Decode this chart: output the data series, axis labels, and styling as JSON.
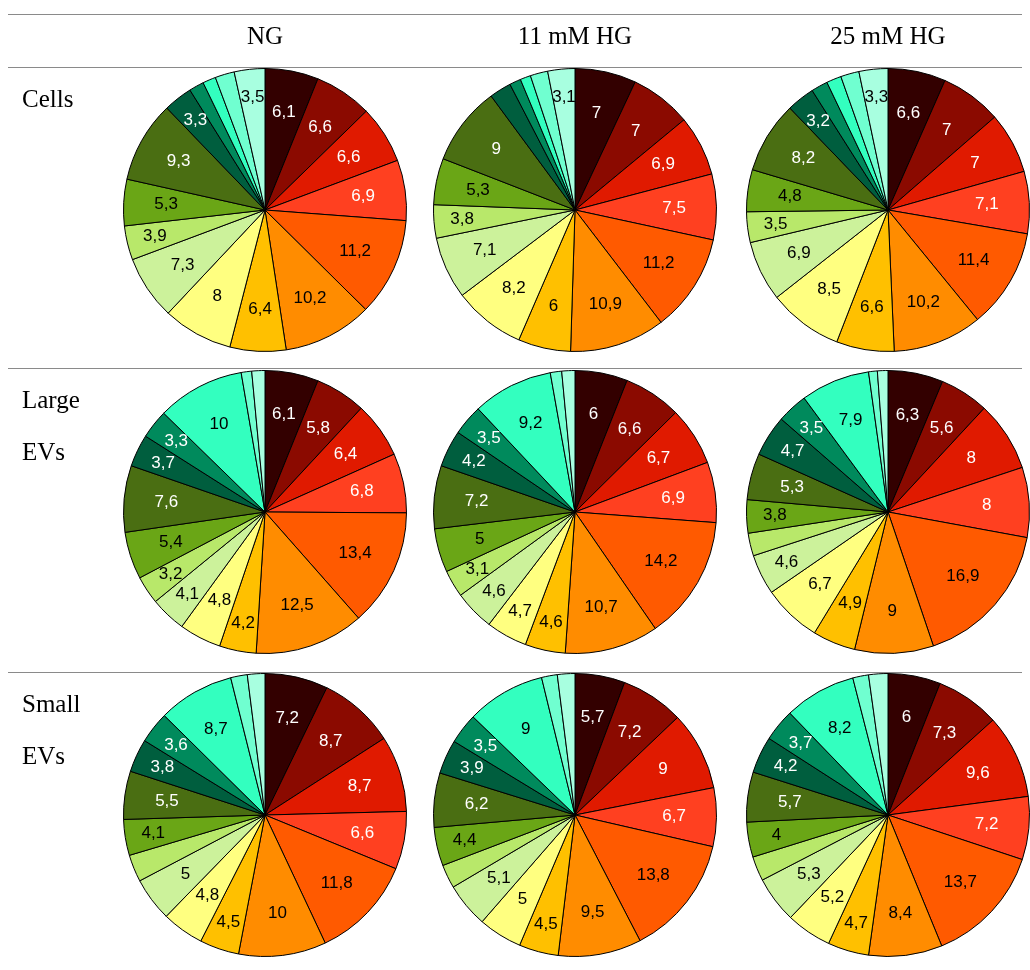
{
  "chart_data": [
    {
      "type": "pie",
      "title": "NG",
      "ylabel": "Cells",
      "categories": [
        null,
        null,
        null,
        null,
        null,
        null,
        null,
        null,
        null,
        null,
        null,
        null,
        null,
        null,
        null,
        null,
        null
      ],
      "values": [
        6.1,
        6.6,
        6.6,
        6.9,
        11.2,
        10.2,
        6.4,
        8,
        7.3,
        3.9,
        5.3,
        9.3,
        3.3,
        1.7,
        1.5,
        2.2,
        3.5
      ],
      "value_labels": [
        "6,1",
        "6,6",
        "6,6",
        "6,9",
        "11,2",
        "10,2",
        "6,4",
        "8",
        "7,3",
        "3,9",
        "5,3",
        "9,3",
        "3,3",
        null,
        null,
        null,
        "3,5"
      ],
      "colors": [
        "#330000",
        "#8b0a00",
        "#e01a00",
        "#ff4020",
        "#ff5a00",
        "#ff8c00",
        "#ffc000",
        "#ffff80",
        "#ccf29b",
        "#b8e86a",
        "#6aa616",
        "#4a6e12",
        "#005e3e",
        "#008a5c",
        "#33ffbf",
        "#70ffd0",
        "#a8ffe0"
      ]
    },
    {
      "type": "pie",
      "title": "11 mM HG",
      "categories": [
        null,
        null,
        null,
        null,
        null,
        null,
        null,
        null,
        null,
        null,
        null,
        null,
        null,
        null,
        null,
        null,
        null
      ],
      "values": [
        7,
        7,
        6.9,
        7.5,
        11.2,
        10.9,
        6,
        8.2,
        7.1,
        3.8,
        5.3,
        9,
        2.5,
        1.3,
        1.2,
        2,
        3.1
      ],
      "value_labels": [
        "7",
        "7",
        "6,9",
        "7,5",
        "11,2",
        "10,9",
        "6",
        "8,2",
        "7,1",
        "3,8",
        "5,3",
        "9",
        null,
        null,
        null,
        null,
        "3,1"
      ],
      "colors": [
        "#330000",
        "#8b0a00",
        "#e01a00",
        "#ff4020",
        "#ff5a00",
        "#ff8c00",
        "#ffc000",
        "#ffff80",
        "#ccf29b",
        "#b8e86a",
        "#6aa616",
        "#4a6e12",
        "#005e3e",
        "#008a5c",
        "#33ffbf",
        "#70ffd0",
        "#a8ffe0"
      ]
    },
    {
      "type": "pie",
      "title": "25 mM HG",
      "categories": [
        null,
        null,
        null,
        null,
        null,
        null,
        null,
        null,
        null,
        null,
        null,
        null,
        null,
        null,
        null,
        null,
        null
      ],
      "values": [
        6.6,
        7,
        7,
        7.1,
        11.4,
        10.2,
        6.6,
        8.5,
        6.9,
        3.5,
        4.8,
        8.2,
        3.2,
        1.9,
        1.7,
        2.1,
        3.3
      ],
      "value_labels": [
        "6,6",
        "7",
        "7",
        "7,1",
        "11,4",
        "10,2",
        "6,6",
        "8,5",
        "6,9",
        "3,5",
        "4,8",
        "8,2",
        "3,2",
        null,
        null,
        null,
        "3,3"
      ],
      "colors": [
        "#330000",
        "#8b0a00",
        "#e01a00",
        "#ff4020",
        "#ff5a00",
        "#ff8c00",
        "#ffc000",
        "#ffff80",
        "#ccf29b",
        "#b8e86a",
        "#6aa616",
        "#4a6e12",
        "#005e3e",
        "#008a5c",
        "#33ffbf",
        "#70ffd0",
        "#a8ffe0"
      ]
    },
    {
      "type": "pie",
      "ylabel": "Large EVs",
      "categories": [
        null,
        null,
        null,
        null,
        null,
        null,
        null,
        null,
        null,
        null,
        null,
        null,
        null,
        null,
        null,
        null,
        null
      ],
      "values": [
        6.1,
        5.8,
        6.4,
        6.8,
        13.4,
        12.5,
        4.2,
        4.8,
        4.1,
        3.2,
        5.4,
        7.6,
        3.7,
        3.3,
        10,
        1.2,
        1.5
      ],
      "value_labels": [
        "6,1",
        "5,8",
        "6,4",
        "6,8",
        "13,4",
        "12,5",
        "4,2",
        "4,8",
        "4,1",
        "3,2",
        "5,4",
        "7,6",
        "3,7",
        "3,3",
        "10",
        null,
        null
      ],
      "colors": [
        "#330000",
        "#8b0a00",
        "#e01a00",
        "#ff4020",
        "#ff5a00",
        "#ff8c00",
        "#ffc000",
        "#ffff80",
        "#ccf29b",
        "#b8e86a",
        "#6aa616",
        "#4a6e12",
        "#005e3e",
        "#008a5c",
        "#33ffbf",
        "#70ffd0",
        "#a8ffe0"
      ]
    },
    {
      "type": "pie",
      "categories": [
        null,
        null,
        null,
        null,
        null,
        null,
        null,
        null,
        null,
        null,
        null,
        null,
        null,
        null,
        null,
        null,
        null
      ],
      "values": [
        6,
        6.6,
        6.7,
        6.9,
        14.2,
        10.7,
        4.6,
        4.7,
        4.6,
        3.1,
        5,
        7.2,
        4.2,
        3.5,
        9.2,
        1.3,
        1.5
      ],
      "value_labels": [
        "6",
        "6,6",
        "6,7",
        "6,9",
        "14,2",
        "10,7",
        "4,6",
        "4,7",
        "4,6",
        "3,1",
        "5",
        "7,2",
        "4,2",
        "3,5",
        "9,2",
        null,
        null
      ],
      "colors": [
        "#330000",
        "#8b0a00",
        "#e01a00",
        "#ff4020",
        "#ff5a00",
        "#ff8c00",
        "#ffc000",
        "#ffff80",
        "#ccf29b",
        "#b8e86a",
        "#6aa616",
        "#4a6e12",
        "#005e3e",
        "#008a5c",
        "#33ffbf",
        "#70ffd0",
        "#a8ffe0"
      ]
    },
    {
      "type": "pie",
      "categories": [
        null,
        null,
        null,
        null,
        null,
        null,
        null,
        null,
        null,
        null,
        null,
        null,
        null,
        null,
        null,
        null,
        null
      ],
      "values": [
        6.3,
        5.6,
        8,
        8,
        16.9,
        9,
        4.9,
        6.7,
        4.6,
        2.6,
        3.8,
        5.3,
        4.7,
        3.5,
        7.9,
        1,
        1.2
      ],
      "value_labels": [
        "6,3",
        "5,6",
        "8",
        "8",
        "16,9",
        "9",
        "4,9",
        "6,7",
        "4,6",
        null,
        "3,8",
        "5,3",
        "4,7",
        "3,5",
        "7,9",
        null,
        null
      ],
      "colors": [
        "#330000",
        "#8b0a00",
        "#e01a00",
        "#ff4020",
        "#ff5a00",
        "#ff8c00",
        "#ffc000",
        "#ffff80",
        "#ccf29b",
        "#b8e86a",
        "#6aa616",
        "#4a6e12",
        "#005e3e",
        "#008a5c",
        "#33ffbf",
        "#70ffd0",
        "#a8ffe0"
      ]
    },
    {
      "type": "pie",
      "ylabel": "Small EVs",
      "categories": [
        null,
        null,
        null,
        null,
        null,
        null,
        null,
        null,
        null,
        null,
        null,
        null,
        null,
        null,
        null,
        null,
        null
      ],
      "values": [
        7.2,
        8.7,
        8.7,
        6.6,
        11.8,
        10,
        4.5,
        4.8,
        5,
        3.1,
        4.1,
        5.5,
        3.8,
        3.6,
        8.7,
        1.9,
        2
      ],
      "value_labels": [
        "7,2",
        "8,7",
        "8,7",
        "6,6",
        "11,8",
        "10",
        "4,5",
        "4,8",
        "5",
        null,
        "4,1",
        "5,5",
        "3,8",
        "3,6",
        "8,7",
        null,
        null
      ],
      "colors": [
        "#330000",
        "#8b0a00",
        "#e01a00",
        "#ff4020",
        "#ff5a00",
        "#ff8c00",
        "#ffc000",
        "#ffff80",
        "#ccf29b",
        "#b8e86a",
        "#6aa616",
        "#4a6e12",
        "#005e3e",
        "#008a5c",
        "#33ffbf",
        "#70ffd0",
        "#a8ffe0"
      ]
    },
    {
      "type": "pie",
      "categories": [
        null,
        null,
        null,
        null,
        null,
        null,
        null,
        null,
        null,
        null,
        null,
        null,
        null,
        null,
        null,
        null,
        null
      ],
      "values": [
        5.7,
        7.2,
        9,
        6.7,
        13.8,
        9.5,
        4.5,
        5,
        5.1,
        2.7,
        4.4,
        6.2,
        3.9,
        3.5,
        9,
        1.8,
        2
      ],
      "value_labels": [
        "5,7",
        "7,2",
        "9",
        "6,7",
        "13,8",
        "9,5",
        "4,5",
        "5",
        "5,1",
        null,
        "4,4",
        "6,2",
        "3,9",
        "3,5",
        "9",
        null,
        null
      ],
      "colors": [
        "#330000",
        "#8b0a00",
        "#e01a00",
        "#ff4020",
        "#ff5a00",
        "#ff8c00",
        "#ffc000",
        "#ffff80",
        "#ccf29b",
        "#b8e86a",
        "#6aa616",
        "#4a6e12",
        "#005e3e",
        "#008a5c",
        "#33ffbf",
        "#70ffd0",
        "#a8ffe0"
      ]
    },
    {
      "type": "pie",
      "categories": [
        null,
        null,
        null,
        null,
        null,
        null,
        null,
        null,
        null,
        null,
        null,
        null,
        null,
        null,
        null,
        null,
        null
      ],
      "values": [
        6,
        7.3,
        9.6,
        7.2,
        13.7,
        8.4,
        4.7,
        5.2,
        5.3,
        2.8,
        4,
        5.7,
        4.2,
        3.7,
        8.2,
        1.8,
        2.2
      ],
      "value_labels": [
        "6",
        "7,3",
        "9,6",
        "7,2",
        "13,7",
        "8,4",
        "4,7",
        "5,2",
        "5,3",
        null,
        "4",
        "5,7",
        "4,2",
        "3,7",
        "8,2",
        null,
        null
      ],
      "colors": [
        "#330000",
        "#8b0a00",
        "#e01a00",
        "#ff4020",
        "#ff5a00",
        "#ff8c00",
        "#ffc000",
        "#ffff80",
        "#ccf29b",
        "#b8e86a",
        "#6aa616",
        "#4a6e12",
        "#005e3e",
        "#008a5c",
        "#33ffbf",
        "#70ffd0",
        "#a8ffe0"
      ]
    }
  ]
}
